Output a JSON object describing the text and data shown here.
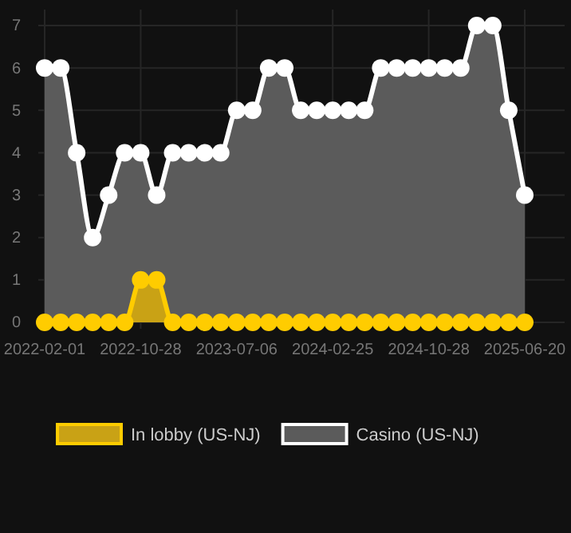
{
  "chart_data": {
    "type": "area",
    "categories": [
      "2022-02-01",
      null,
      null,
      null,
      null,
      null,
      "2022-10-28",
      null,
      null,
      null,
      null,
      null,
      "2023-07-06",
      null,
      null,
      null,
      null,
      null,
      "2024-02-25",
      null,
      null,
      null,
      null,
      null,
      "2024-10-28",
      null,
      null,
      null,
      null,
      null,
      "2025-06-20"
    ],
    "series": [
      {
        "name": "In lobby (US-NJ)",
        "color": "#ffcc00",
        "values": [
          0,
          0,
          0,
          0,
          0,
          0,
          1,
          1,
          0,
          0,
          0,
          0,
          0,
          0,
          0,
          0,
          0,
          0,
          0,
          0,
          0,
          0,
          0,
          0,
          0,
          0,
          0,
          0,
          0,
          0,
          0
        ]
      },
      {
        "name": "Casino (US-NJ)",
        "color": "#ffffff",
        "values": [
          6,
          6,
          4,
          2,
          3,
          4,
          4,
          3,
          4,
          4,
          4,
          4,
          5,
          5,
          6,
          6,
          5,
          5,
          5,
          5,
          5,
          6,
          6,
          6,
          6,
          6,
          6,
          7,
          7,
          5,
          3
        ]
      }
    ],
    "ylim": [
      0,
      7
    ],
    "yticks": [
      0,
      1,
      2,
      3,
      4,
      5,
      6,
      7
    ],
    "grid": true,
    "legend": "bottom",
    "marker": "circle"
  }
}
